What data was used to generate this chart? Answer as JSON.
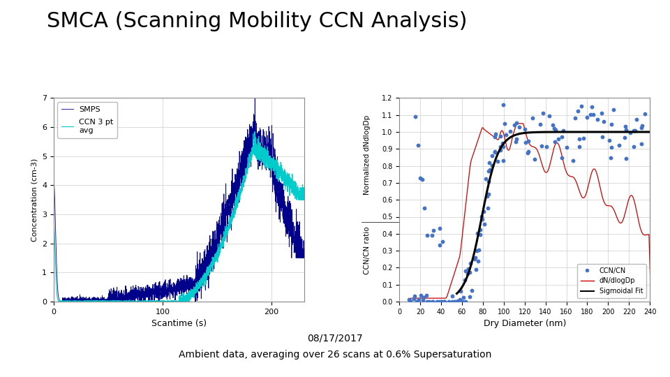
{
  "title": "SMCA (Scanning Mobility CCN Analysis)",
  "title_fontsize": 22,
  "subtitle1": "08/17/2017",
  "subtitle2": "Ambient data, averaging over 26 scans at 0.6% Supersaturation",
  "subtitle_fontsize": 10,
  "left_xlabel": "Scantime (s)",
  "left_ylabel": "Concentration (cm-3)",
  "left_xlim": [
    0,
    230
  ],
  "left_ylim": [
    0,
    7
  ],
  "left_yticks": [
    0,
    1,
    2,
    3,
    4,
    5,
    6,
    7
  ],
  "left_xticks": [
    0,
    100,
    200
  ],
  "smps_color": "#00008B",
  "ccn_color": "#00CCCC",
  "right_xlabel": "Dry Diameter (nm)",
  "right_ylabel_left": "CCN/CN ratio",
  "right_ylabel_right": "Normalized dNdlogDp",
  "right_xlim": [
    0,
    240
  ],
  "right_ylim": [
    0,
    1.2
  ],
  "right_yticks": [
    0,
    0.1,
    0.2,
    0.3,
    0.4,
    0.5,
    0.6,
    0.7,
    0.8,
    0.9,
    1.0,
    1.1,
    1.2
  ],
  "right_xticks": [
    0,
    20,
    40,
    60,
    80,
    100,
    120,
    140,
    160,
    180,
    200,
    220,
    240
  ],
  "scatter_color": "#4472C4",
  "dndlogdp_color": "#CC0000",
  "sigmoidal_color": "#000000",
  "background_color": "#FFFFFF"
}
